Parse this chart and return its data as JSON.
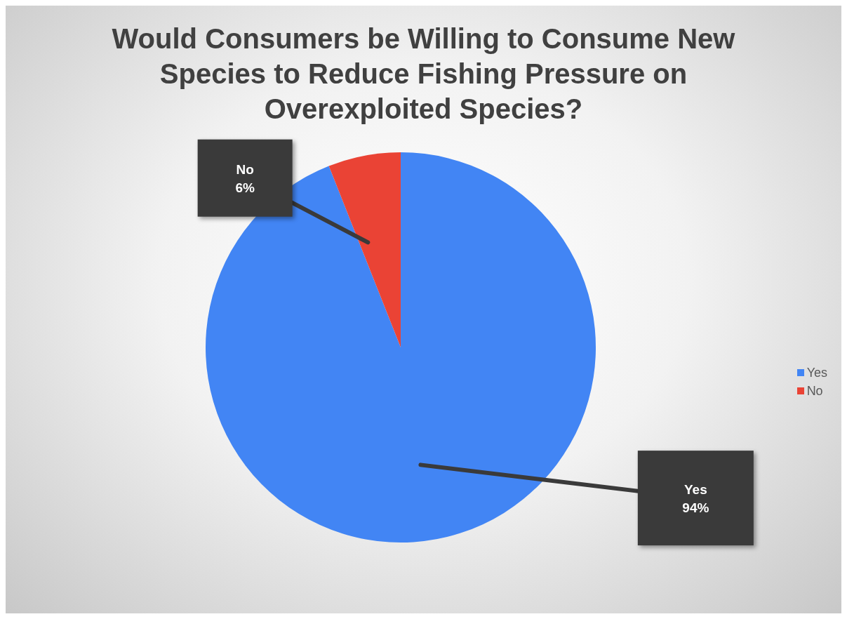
{
  "chart_data": {
    "type": "pie",
    "title": "Would Consumers be Willing to Consume New Species to Reduce Fishing Pressure on Overexploited Species?",
    "categories": [
      "Yes",
      "No"
    ],
    "values": [
      94,
      6
    ],
    "colors": [
      "#4285f4",
      "#ea4335"
    ],
    "value_labels": [
      "94%",
      "6%"
    ],
    "legend": "right"
  }
}
